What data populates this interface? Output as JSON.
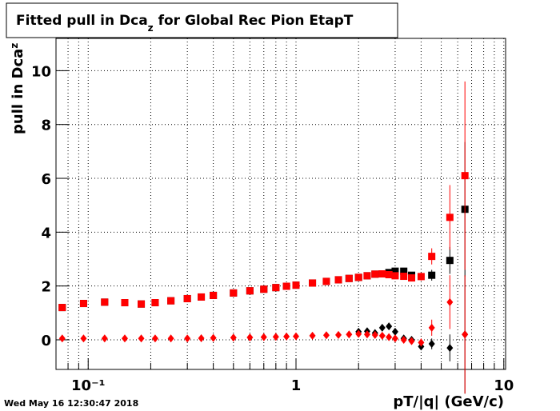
{
  "chart_data": {
    "type": "scatter",
    "title": [
      "Fitted pull in Dca",
      "z",
      " for Global Rec Pion EtapT"
    ],
    "y_label": [
      "pull in Dca",
      "z"
    ],
    "x_label": "pT/|q| (GeV/c)",
    "timestamp": "Wed May 16 12:30:47 2018",
    "log_x": true,
    "grid": true,
    "xlim": [
      0.07,
      10.2
    ],
    "ylim": [
      -1.1,
      11.2
    ],
    "xticks": [
      {
        "value": 0.1,
        "label": "10⁻¹"
      },
      1,
      10
    ],
    "xminor": [
      0.08,
      0.09,
      0.2,
      0.3,
      0.4,
      0.5,
      0.6,
      0.7,
      0.8,
      0.9,
      2,
      3,
      4,
      5,
      6,
      7,
      8,
      9
    ],
    "yticks": [
      0,
      2,
      4,
      6,
      8,
      10
    ],
    "series": [
      {
        "marker": "square",
        "color": "#000000",
        "x": [
          0.075,
          0.095,
          0.12,
          0.15,
          0.18,
          0.21,
          0.25,
          0.3,
          0.35,
          0.4,
          0.5,
          0.6,
          0.7,
          0.8,
          0.9,
          1.0,
          1.2,
          1.4,
          1.6,
          1.8,
          2.0,
          2.2,
          2.4,
          2.6,
          2.8,
          3.0,
          3.3,
          3.6,
          4.5,
          5.5,
          6.5
        ],
        "values": [
          1.2,
          1.35,
          1.4,
          1.38,
          1.33,
          1.38,
          1.45,
          1.53,
          1.59,
          1.65,
          1.74,
          1.82,
          1.88,
          1.94,
          1.99,
          2.03,
          2.11,
          2.17,
          2.23,
          2.28,
          2.32,
          2.38,
          2.44,
          2.45,
          2.5,
          2.55,
          2.55,
          2.4,
          2.4,
          2.95,
          4.85
        ],
        "errors": [
          0.1,
          0.05,
          0.05,
          0.05,
          0.05,
          0.05,
          0.05,
          0.05,
          0.05,
          0.05,
          0.05,
          0.05,
          0.05,
          0.05,
          0.05,
          0.05,
          0.05,
          0.05,
          0.05,
          0.05,
          0.05,
          0.05,
          0.05,
          0.05,
          0.05,
          0.05,
          0.08,
          0.1,
          0.2,
          0.5,
          2.5
        ]
      },
      {
        "marker": "square",
        "color": "#ff0000",
        "x": [
          0.075,
          0.095,
          0.12,
          0.15,
          0.18,
          0.21,
          0.25,
          0.3,
          0.35,
          0.4,
          0.5,
          0.6,
          0.7,
          0.8,
          0.9,
          1.0,
          1.2,
          1.4,
          1.6,
          1.8,
          2.0,
          2.2,
          2.4,
          2.6,
          2.8,
          3.0,
          3.3,
          3.6,
          4.0,
          4.5,
          5.5,
          6.5
        ],
        "values": [
          1.2,
          1.35,
          1.4,
          1.38,
          1.33,
          1.38,
          1.45,
          1.53,
          1.59,
          1.65,
          1.74,
          1.82,
          1.88,
          1.94,
          1.99,
          2.03,
          2.11,
          2.17,
          2.23,
          2.28,
          2.32,
          2.38,
          2.44,
          2.45,
          2.42,
          2.38,
          2.36,
          2.3,
          2.35,
          3.1,
          4.55,
          6.1
        ],
        "errors": [
          0.1,
          0.05,
          0.05,
          0.05,
          0.05,
          0.05,
          0.05,
          0.05,
          0.05,
          0.05,
          0.05,
          0.05,
          0.05,
          0.05,
          0.05,
          0.05,
          0.05,
          0.05,
          0.05,
          0.05,
          0.05,
          0.05,
          0.05,
          0.05,
          0.05,
          0.05,
          0.08,
          0.1,
          0.15,
          0.3,
          1.2,
          3.5
        ]
      },
      {
        "marker": "diamond",
        "color": "#000000",
        "x": [
          2.0,
          2.2,
          2.4,
          2.6,
          2.8,
          3.0,
          3.3,
          3.6,
          4.0,
          4.5,
          5.5,
          6.5
        ],
        "values": [
          0.3,
          0.32,
          0.25,
          0.45,
          0.5,
          0.3,
          0.05,
          0.0,
          -0.25,
          -0.15,
          -0.3,
          0.2
        ],
        "errors": [
          0.05,
          0.05,
          0.05,
          0.05,
          0.05,
          0.05,
          0.05,
          0.08,
          0.1,
          0.2,
          0.5,
          2.2
        ]
      },
      {
        "marker": "diamond",
        "color": "#ff0000",
        "x": [
          0.075,
          0.095,
          0.12,
          0.15,
          0.18,
          0.21,
          0.25,
          0.3,
          0.35,
          0.4,
          0.5,
          0.6,
          0.7,
          0.8,
          0.9,
          1.0,
          1.2,
          1.4,
          1.6,
          1.8,
          2.0,
          2.2,
          2.4,
          2.6,
          2.8,
          3.0,
          3.3,
          3.6,
          4.0,
          4.5,
          5.5,
          6.5
        ],
        "values": [
          0.05,
          0.05,
          0.05,
          0.05,
          0.05,
          0.05,
          0.05,
          0.05,
          0.06,
          0.07,
          0.08,
          0.09,
          0.1,
          0.11,
          0.12,
          0.13,
          0.15,
          0.17,
          0.18,
          0.2,
          0.22,
          0.2,
          0.18,
          0.15,
          0.1,
          0.05,
          0.0,
          -0.05,
          -0.1,
          0.45,
          1.4,
          0.2
        ],
        "errors": [
          0.05,
          0.05,
          0.05,
          0.05,
          0.05,
          0.05,
          0.05,
          0.05,
          0.05,
          0.05,
          0.05,
          0.05,
          0.05,
          0.05,
          0.05,
          0.05,
          0.05,
          0.05,
          0.05,
          0.05,
          0.05,
          0.05,
          0.05,
          0.05,
          0.05,
          0.05,
          0.08,
          0.1,
          0.15,
          0.3,
          1.0,
          2.2
        ]
      }
    ]
  }
}
